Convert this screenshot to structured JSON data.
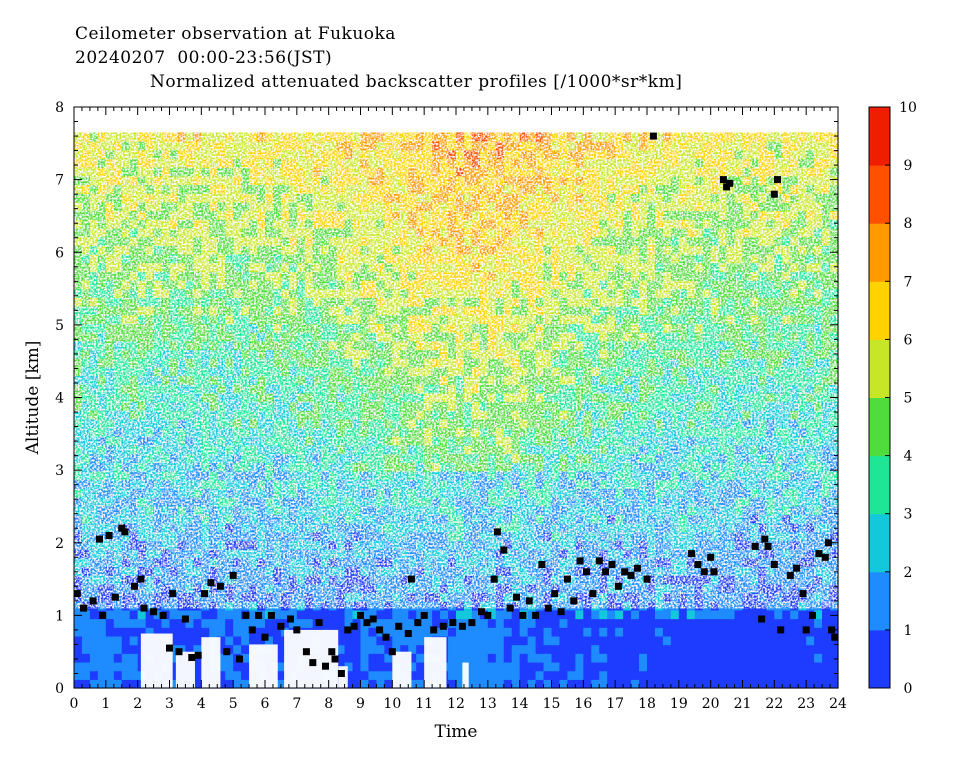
{
  "header": {
    "line1": "Ceilometer observation at Fukuoka",
    "line2": "20240207  00:00-23:56(JST)",
    "line3": "Normalized attenuated backscatter profiles [/1000*sr*km]"
  },
  "chart_data": {
    "type": "heatmap",
    "title": "Normalized attenuated backscatter profiles [/1000*sr*km]",
    "xlabel": "Time",
    "ylabel": "Altitude [km]",
    "xlim": [
      0,
      24
    ],
    "ylim": [
      0,
      8
    ],
    "x_ticks": [
      "0",
      "1",
      "2",
      "3",
      "4",
      "5",
      "6",
      "7",
      "8",
      "9",
      "10",
      "11",
      "12",
      "13",
      "14",
      "15",
      "16",
      "17",
      "18",
      "19",
      "20",
      "21",
      "22",
      "23",
      "24"
    ],
    "y_ticks": [
      "0",
      "1",
      "2",
      "3",
      "4",
      "5",
      "6",
      "7",
      "8"
    ],
    "colorbar": {
      "min": 0,
      "max": 10,
      "ticks": [
        "0",
        "1",
        "2",
        "3",
        "4",
        "5",
        "6",
        "7",
        "8",
        "9",
        "10"
      ],
      "colors": [
        "#1e3cff",
        "#1e8cff",
        "#14c8dc",
        "#1ee696",
        "#50dc3c",
        "#c8e628",
        "#ffd200",
        "#ff9b00",
        "#ff5000",
        "#f01e00"
      ]
    },
    "data_top_altitude_km": 7.65,
    "low_layer_mean_value_by_hour": [
      1.2,
      1.1,
      0.9,
      0.9,
      1.0,
      1.1,
      0.9,
      0.9,
      0.9,
      1.0,
      1.0,
      1.0,
      1.3,
      1.1,
      1.0,
      0.9,
      0.9,
      0.8,
      0.8,
      0.7,
      0.7,
      0.7,
      0.7,
      0.8
    ],
    "boundary_points": [
      [
        0.1,
        1.3
      ],
      [
        0.3,
        1.1
      ],
      [
        0.6,
        1.2
      ],
      [
        0.8,
        2.05
      ],
      [
        0.9,
        1.0
      ],
      [
        1.1,
        2.1
      ],
      [
        1.3,
        1.25
      ],
      [
        1.5,
        2.2
      ],
      [
        1.6,
        2.15
      ],
      [
        1.9,
        1.4
      ],
      [
        2.1,
        1.5
      ],
      [
        2.2,
        1.1
      ],
      [
        2.5,
        1.05
      ],
      [
        2.8,
        1.0
      ],
      [
        3.0,
        0.55
      ],
      [
        3.1,
        1.3
      ],
      [
        3.3,
        0.5
      ],
      [
        3.5,
        0.95
      ],
      [
        3.7,
        0.42
      ],
      [
        3.9,
        0.45
      ],
      [
        4.1,
        1.3
      ],
      [
        4.3,
        1.45
      ],
      [
        4.6,
        1.4
      ],
      [
        4.8,
        0.5
      ],
      [
        5.0,
        1.55
      ],
      [
        5.2,
        0.4
      ],
      [
        5.4,
        1.0
      ],
      [
        5.6,
        0.8
      ],
      [
        5.8,
        1.0
      ],
      [
        6.0,
        0.7
      ],
      [
        6.2,
        1.0
      ],
      [
        6.5,
        0.85
      ],
      [
        6.8,
        0.95
      ],
      [
        7.0,
        0.8
      ],
      [
        7.3,
        0.5
      ],
      [
        7.5,
        0.35
      ],
      [
        7.7,
        0.9
      ],
      [
        7.9,
        0.3
      ],
      [
        8.1,
        0.5
      ],
      [
        8.2,
        0.4
      ],
      [
        8.4,
        0.2
      ],
      [
        8.6,
        0.8
      ],
      [
        8.8,
        0.85
      ],
      [
        9.0,
        1.0
      ],
      [
        9.2,
        0.9
      ],
      [
        9.4,
        0.95
      ],
      [
        9.6,
        0.8
      ],
      [
        9.8,
        0.7
      ],
      [
        10.0,
        0.5
      ],
      [
        10.2,
        0.85
      ],
      [
        10.5,
        0.75
      ],
      [
        10.6,
        1.5
      ],
      [
        10.8,
        0.9
      ],
      [
        11.0,
        1.0
      ],
      [
        11.3,
        0.8
      ],
      [
        11.6,
        0.85
      ],
      [
        11.9,
        0.9
      ],
      [
        12.2,
        0.85
      ],
      [
        12.5,
        0.9
      ],
      [
        12.8,
        1.05
      ],
      [
        13.0,
        1.0
      ],
      [
        13.2,
        1.5
      ],
      [
        13.3,
        2.15
      ],
      [
        13.5,
        1.9
      ],
      [
        13.7,
        1.1
      ],
      [
        13.9,
        1.25
      ],
      [
        14.1,
        1.0
      ],
      [
        14.3,
        1.2
      ],
      [
        14.5,
        1.0
      ],
      [
        14.7,
        1.7
      ],
      [
        14.9,
        1.1
      ],
      [
        15.1,
        1.3
      ],
      [
        15.3,
        1.05
      ],
      [
        15.5,
        1.5
      ],
      [
        15.7,
        1.2
      ],
      [
        15.9,
        1.75
      ],
      [
        16.1,
        1.6
      ],
      [
        16.3,
        1.3
      ],
      [
        16.5,
        1.75
      ],
      [
        16.7,
        1.6
      ],
      [
        16.9,
        1.7
      ],
      [
        17.1,
        1.4
      ],
      [
        17.3,
        1.6
      ],
      [
        17.5,
        1.55
      ],
      [
        17.7,
        1.65
      ],
      [
        18.0,
        1.5
      ],
      [
        18.2,
        7.6
      ],
      [
        19.4,
        1.85
      ],
      [
        19.6,
        1.7
      ],
      [
        19.8,
        1.6
      ],
      [
        20.0,
        1.8
      ],
      [
        20.1,
        1.6
      ],
      [
        20.4,
        7.0
      ],
      [
        20.5,
        6.9
      ],
      [
        20.6,
        6.95
      ],
      [
        21.4,
        1.95
      ],
      [
        21.6,
        0.95
      ],
      [
        21.7,
        2.05
      ],
      [
        21.8,
        1.95
      ],
      [
        22.0,
        1.7
      ],
      [
        22.0,
        6.8
      ],
      [
        22.1,
        7.0
      ],
      [
        22.2,
        0.8
      ],
      [
        22.5,
        1.55
      ],
      [
        22.7,
        1.65
      ],
      [
        22.9,
        1.3
      ],
      [
        23.0,
        0.8
      ],
      [
        23.2,
        1.0
      ],
      [
        23.4,
        1.85
      ],
      [
        23.6,
        1.8
      ],
      [
        23.7,
        2.0
      ],
      [
        23.8,
        0.8
      ],
      [
        23.9,
        0.7
      ]
    ]
  }
}
